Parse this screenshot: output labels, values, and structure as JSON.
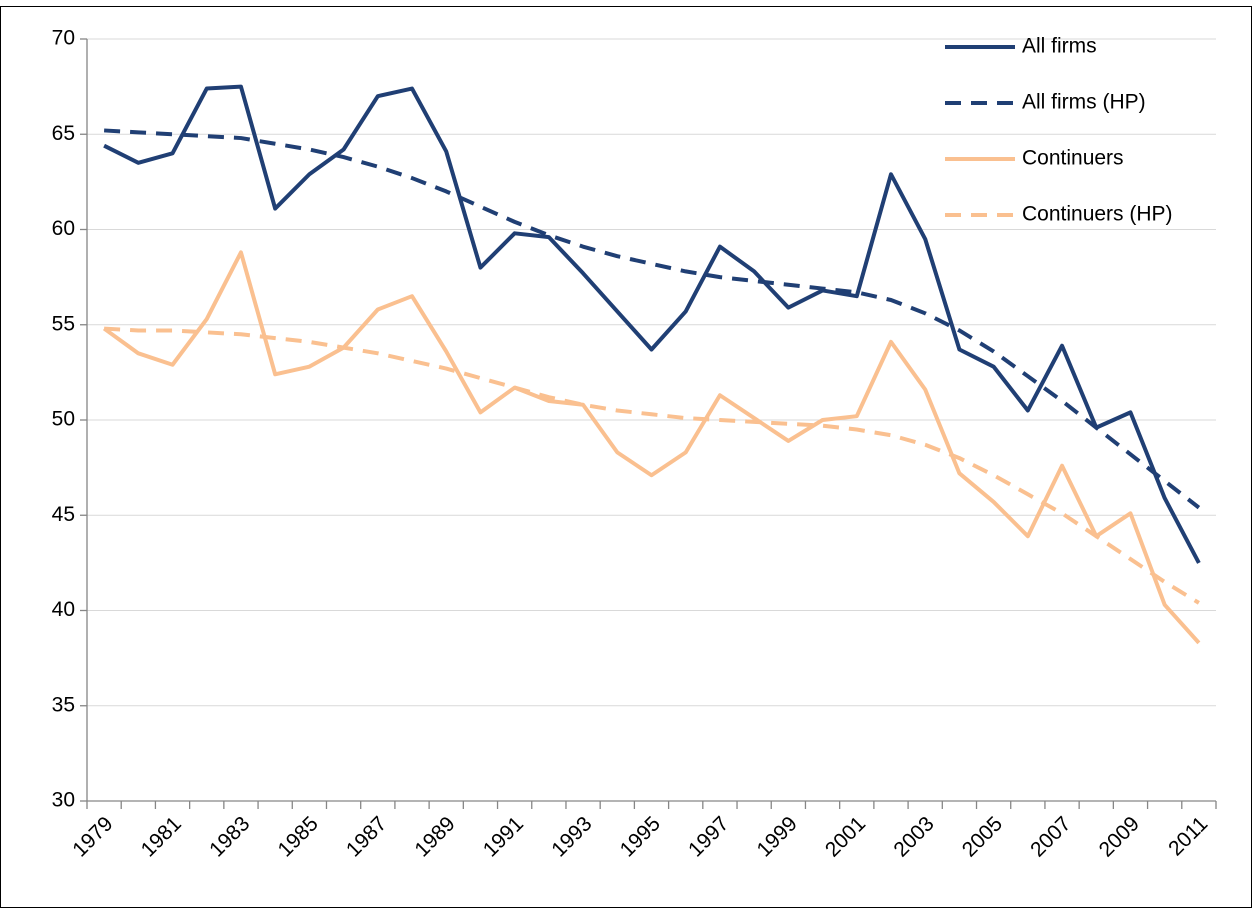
{
  "chart_data": {
    "type": "line",
    "categories": [
      "1979",
      null,
      "1981",
      null,
      "1983",
      null,
      "1985",
      null,
      "1987",
      null,
      "1989",
      null,
      "1991",
      null,
      "1993",
      null,
      "1995",
      null,
      "1997",
      null,
      "1999",
      null,
      "2001",
      null,
      "2003",
      null,
      "2005",
      null,
      "2007",
      null,
      "2009",
      null,
      "2011"
    ],
    "series": [
      {
        "name": "All firms",
        "color": "#203f74",
        "style": "solid",
        "values": [
          64.4,
          63.5,
          64.0,
          67.4,
          67.5,
          61.1,
          62.9,
          64.2,
          67.0,
          67.4,
          64.1,
          58.0,
          59.8,
          59.6,
          57.7,
          55.7,
          53.7,
          55.7,
          59.1,
          57.8,
          55.9,
          56.8,
          56.5,
          62.9,
          59.5,
          53.7,
          52.8,
          50.5,
          53.9,
          49.6,
          50.4,
          45.9,
          42.5
        ]
      },
      {
        "name": "All firms (HP)",
        "color": "#203f74",
        "style": "dashed",
        "values": [
          65.2,
          65.1,
          65.0,
          64.9,
          64.8,
          64.5,
          64.2,
          63.8,
          63.3,
          62.7,
          62.0,
          61.2,
          60.4,
          59.7,
          59.1,
          58.6,
          58.2,
          57.8,
          57.5,
          57.3,
          57.1,
          56.9,
          56.7,
          56.3,
          55.6,
          54.7,
          53.6,
          52.3,
          51.0,
          49.6,
          48.2,
          46.8,
          45.4
        ]
      },
      {
        "name": "Continuers",
        "color": "#fac090",
        "style": "solid",
        "values": [
          54.8,
          53.5,
          52.9,
          55.3,
          58.8,
          52.4,
          52.8,
          53.8,
          55.8,
          56.5,
          53.6,
          50.4,
          51.7,
          51.0,
          50.8,
          48.3,
          47.1,
          48.3,
          51.3,
          50.1,
          48.9,
          50.0,
          50.2,
          54.1,
          51.6,
          47.2,
          45.7,
          43.9,
          47.6,
          43.9,
          45.1,
          40.3,
          38.3
        ]
      },
      {
        "name": "Continuers (HP)",
        "color": "#fac090",
        "style": "dashed",
        "values": [
          54.8,
          54.7,
          54.7,
          54.6,
          54.5,
          54.3,
          54.1,
          53.8,
          53.5,
          53.1,
          52.7,
          52.2,
          51.7,
          51.2,
          50.8,
          50.5,
          50.3,
          50.1,
          50.0,
          49.9,
          49.8,
          49.7,
          49.5,
          49.2,
          48.7,
          48.0,
          47.1,
          46.1,
          45.1,
          43.9,
          42.7,
          41.5,
          40.4
        ]
      }
    ],
    "ylim": [
      30,
      70
    ],
    "yticks": [
      30,
      35,
      40,
      45,
      50,
      55,
      60,
      65,
      70
    ],
    "grid": true,
    "legend": "top-right"
  }
}
